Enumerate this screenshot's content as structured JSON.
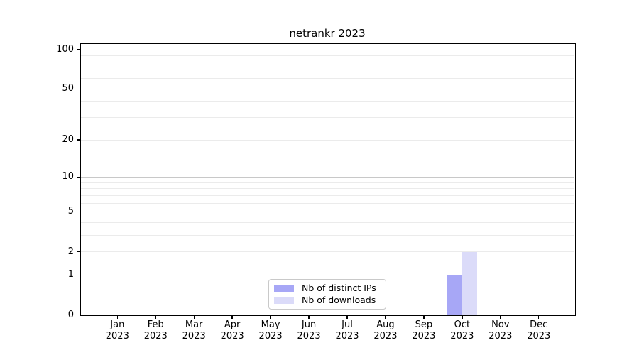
{
  "chart_data": {
    "type": "bar",
    "title": "netrankr 2023",
    "categories": [
      "Jan",
      "Feb",
      "Mar",
      "Apr",
      "May",
      "Jun",
      "Jul",
      "Aug",
      "Sep",
      "Oct",
      "Nov",
      "Dec"
    ],
    "category_year": "2023",
    "series": [
      {
        "name": "Nb of distinct IPs",
        "color": "#a7a7f6",
        "values": [
          0,
          0,
          0,
          0,
          0,
          0,
          0,
          0,
          0,
          1,
          0,
          0
        ]
      },
      {
        "name": "Nb of downloads",
        "color": "#dbdbf9",
        "values": [
          0,
          0,
          0,
          0,
          0,
          0,
          0,
          0,
          0,
          2,
          0,
          0
        ]
      }
    ],
    "xlabel": "",
    "ylabel": "",
    "yscale": "log1p",
    "ylim": [
      0,
      112
    ],
    "y_tick_values": [
      0,
      1,
      2,
      5,
      10,
      20,
      50,
      100
    ],
    "y_major_gridlines": [
      1,
      10,
      100
    ],
    "y_minor_gridlines": [
      2,
      3,
      4,
      5,
      6,
      7,
      8,
      9,
      20,
      30,
      40,
      50,
      60,
      70,
      80,
      90
    ],
    "grid": true,
    "legend_position": "lower center inside",
    "colors": {
      "axis": "#000000",
      "major_grid": "#c8c8c8",
      "minor_grid": "#ebebeb",
      "legend_border": "#c9c9c9",
      "background": "#ffffff"
    }
  }
}
